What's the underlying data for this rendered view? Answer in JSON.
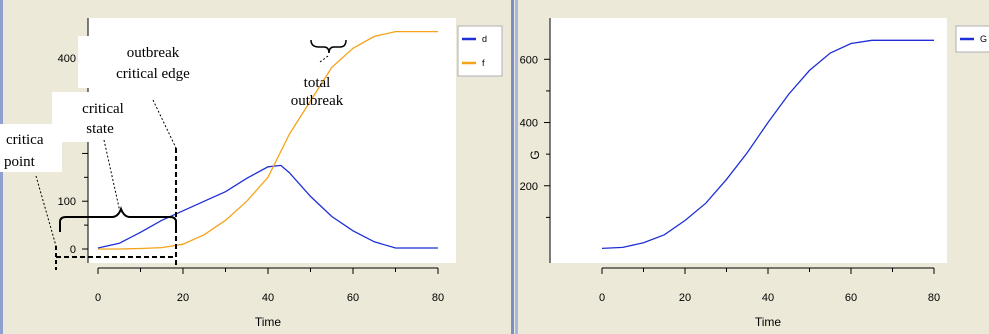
{
  "chart_data": [
    {
      "type": "line",
      "xlabel": "Time",
      "ylabel": "",
      "xlim": [
        0,
        80
      ],
      "ylim": [
        0,
        450
      ],
      "x_ticks": [
        "0",
        "20",
        "40",
        "60",
        "80"
      ],
      "y_ticks": [
        "0",
        "100",
        "",
        "",
        "400"
      ],
      "series": [
        {
          "name": "d",
          "color": "#1f2fd6",
          "x": [
            0,
            5,
            10,
            15,
            20,
            25,
            30,
            35,
            40,
            43,
            45,
            50,
            55,
            60,
            65,
            70,
            75,
            80
          ],
          "y": [
            2,
            12,
            35,
            60,
            80,
            100,
            120,
            148,
            172,
            175,
            160,
            110,
            68,
            38,
            15,
            2,
            2,
            2
          ]
        },
        {
          "name": "f",
          "color": "#f5a31a",
          "x": [
            0,
            5,
            10,
            15,
            20,
            25,
            30,
            35,
            40,
            45,
            50,
            55,
            60,
            65,
            70,
            75,
            80
          ],
          "y": [
            0,
            0,
            1,
            3,
            10,
            30,
            60,
            100,
            150,
            240,
            310,
            380,
            420,
            445,
            455,
            455,
            455
          ]
        }
      ],
      "legend": "top-right",
      "annotations": {
        "outbreak_critical_edge": [
          "outbreak",
          "critical edge"
        ],
        "total_outbreak": [
          "total",
          "outbreak"
        ],
        "critical_state": [
          "critical",
          "state"
        ],
        "critical_point": [
          "critica",
          "point"
        ]
      }
    },
    {
      "type": "line",
      "xlabel": "Time",
      "ylabel": "G",
      "xlim": [
        0,
        80
      ],
      "ylim": [
        0,
        680
      ],
      "x_ticks": [
        "0",
        "20",
        "40",
        "60",
        "80"
      ],
      "y_ticks": [
        "200",
        "400",
        "600"
      ],
      "series": [
        {
          "name": "G",
          "color": "#1f2fd6",
          "x": [
            0,
            5,
            10,
            15,
            20,
            25,
            30,
            35,
            40,
            45,
            50,
            55,
            60,
            65,
            70,
            75,
            80
          ],
          "y": [
            2,
            5,
            20,
            45,
            90,
            145,
            220,
            305,
            400,
            490,
            565,
            620,
            650,
            660,
            660,
            660,
            660
          ]
        }
      ],
      "legend": "top-right"
    }
  ]
}
